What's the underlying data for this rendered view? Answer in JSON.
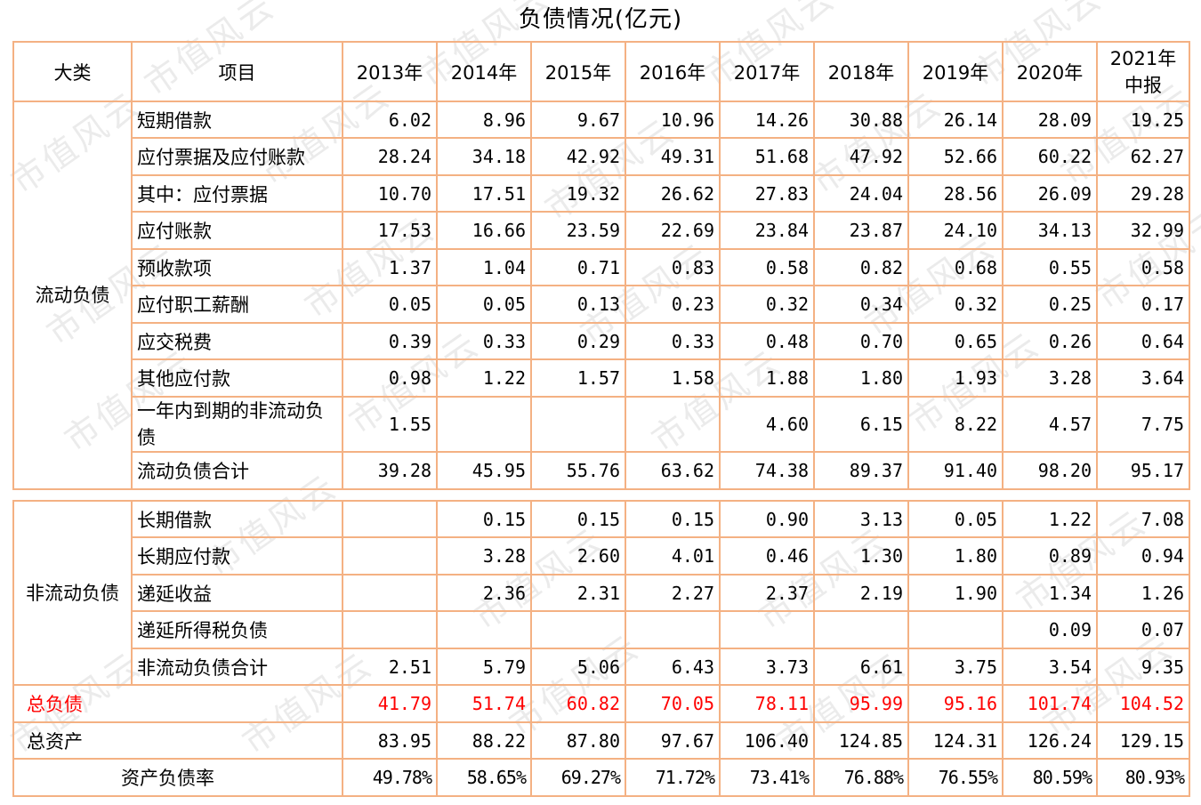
{
  "title": "负债情况(亿元)",
  "watermark": "市值风云",
  "header": {
    "category": "大类",
    "item": "项目",
    "years": [
      "2013年",
      "2014年",
      "2015年",
      "2016年",
      "2017年",
      "2018年",
      "2019年",
      "2020年",
      "2021年中报"
    ]
  },
  "current": {
    "category": "流动负债",
    "rows": [
      {
        "label": "短期借款",
        "values": [
          "6.02",
          "8.96",
          "9.67",
          "10.96",
          "14.26",
          "30.88",
          "26.14",
          "28.09",
          "19.25"
        ]
      },
      {
        "label": "应付票据及应付账款",
        "values": [
          "28.24",
          "34.18",
          "42.92",
          "49.31",
          "51.68",
          "47.92",
          "52.66",
          "60.22",
          "62.27"
        ]
      },
      {
        "label": "其中：应付票据",
        "values": [
          "10.70",
          "17.51",
          "19.32",
          "26.62",
          "27.83",
          "24.04",
          "28.56",
          "26.09",
          "29.28"
        ]
      },
      {
        "label": "应付账款",
        "values": [
          "17.53",
          "16.66",
          "23.59",
          "22.69",
          "23.84",
          "23.87",
          "24.10",
          "34.13",
          "32.99"
        ]
      },
      {
        "label": "预收款项",
        "values": [
          "1.37",
          "1.04",
          "0.71",
          "0.83",
          "0.58",
          "0.82",
          "0.68",
          "0.55",
          "0.58"
        ]
      },
      {
        "label": "应付职工薪酬",
        "values": [
          "0.05",
          "0.05",
          "0.13",
          "0.23",
          "0.32",
          "0.34",
          "0.32",
          "0.25",
          "0.17"
        ]
      },
      {
        "label": "应交税费",
        "values": [
          "0.39",
          "0.33",
          "0.29",
          "0.33",
          "0.48",
          "0.70",
          "0.65",
          "0.26",
          "0.64"
        ]
      },
      {
        "label": "其他应付款",
        "values": [
          "0.98",
          "1.22",
          "1.57",
          "1.58",
          "1.88",
          "1.80",
          "1.93",
          "3.28",
          "3.64"
        ]
      },
      {
        "label": "一年内到期的非流动负债",
        "values": [
          "1.55",
          "",
          "",
          "",
          "4.60",
          "6.15",
          "8.22",
          "4.57",
          "7.75"
        ]
      },
      {
        "label": "流动负债合计",
        "values": [
          "39.28",
          "45.95",
          "55.76",
          "63.62",
          "74.38",
          "89.37",
          "91.40",
          "98.20",
          "95.17"
        ]
      }
    ]
  },
  "noncurrent": {
    "category": "非流动负债",
    "rows": [
      {
        "label": "长期借款",
        "values": [
          "",
          "0.15",
          "0.15",
          "0.15",
          "0.90",
          "3.13",
          "0.05",
          "1.22",
          "7.08"
        ]
      },
      {
        "label": "长期应付款",
        "values": [
          "",
          "3.28",
          "2.60",
          "4.01",
          "0.46",
          "1.30",
          "1.80",
          "0.89",
          "0.94"
        ]
      },
      {
        "label": "递延收益",
        "values": [
          "",
          "2.36",
          "2.31",
          "2.27",
          "2.37",
          "2.19",
          "1.90",
          "1.34",
          "1.26"
        ]
      },
      {
        "label": "递延所得税负债",
        "values": [
          "",
          "",
          "",
          "",
          "",
          "",
          "",
          "0.09",
          "0.07"
        ]
      },
      {
        "label": "非流动负债合计",
        "values": [
          "2.51",
          "5.79",
          "5.06",
          "6.43",
          "3.73",
          "6.61",
          "3.75",
          "3.54",
          "9.35"
        ]
      }
    ]
  },
  "summary": [
    {
      "label": "总负债",
      "values": [
        "41.79",
        "51.74",
        "60.82",
        "70.05",
        "78.11",
        "95.99",
        "95.16",
        "101.74",
        "104.52"
      ],
      "color": "#ff0000"
    },
    {
      "label": "总资产",
      "values": [
        "83.95",
        "88.22",
        "87.80",
        "97.67",
        "106.40",
        "124.85",
        "124.31",
        "126.24",
        "129.15"
      ]
    },
    {
      "label": "资产负债率",
      "values": [
        "49.78%",
        "58.65%",
        "69.27%",
        "71.72%",
        "73.41%",
        "76.88%",
        "76.55%",
        "80.59%",
        "80.93%"
      ]
    }
  ],
  "colors": {
    "border": "#f4b183",
    "highlight": "#ff0000",
    "watermark": "#ebebeb"
  }
}
